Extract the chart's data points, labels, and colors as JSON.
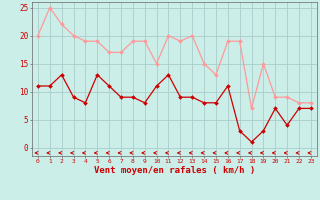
{
  "x": [
    0,
    1,
    2,
    3,
    4,
    5,
    6,
    7,
    8,
    9,
    10,
    11,
    12,
    13,
    14,
    15,
    16,
    17,
    18,
    19,
    20,
    21,
    22,
    23
  ],
  "wind_avg": [
    11,
    11,
    13,
    9,
    8,
    13,
    11,
    9,
    9,
    8,
    11,
    13,
    9,
    9,
    8,
    8,
    11,
    3,
    1,
    3,
    7,
    4,
    7,
    7
  ],
  "wind_gust": [
    20,
    25,
    22,
    20,
    19,
    19,
    17,
    17,
    19,
    19,
    15,
    20,
    19,
    20,
    15,
    13,
    19,
    19,
    7,
    15,
    9,
    9,
    8,
    8
  ],
  "wind_dir_angle": [
    225,
    225,
    225,
    225,
    225,
    225,
    225,
    225,
    225,
    225,
    225,
    225,
    225,
    225,
    225,
    225,
    200,
    190,
    200,
    225,
    200,
    200,
    225,
    225
  ],
  "avg_color": "#cc0000",
  "gust_color": "#ff9999",
  "bg_color": "#cceee8",
  "grid_color": "#aacccc",
  "xlabel": "Vent moyen/en rafales ( km/h )",
  "xlabel_color": "#cc0000",
  "ylabel_color": "#cc0000",
  "yticks": [
    0,
    5,
    10,
    15,
    20,
    25
  ],
  "ylim": [
    -1.5,
    26
  ],
  "xlim": [
    -0.5,
    23.5
  ]
}
